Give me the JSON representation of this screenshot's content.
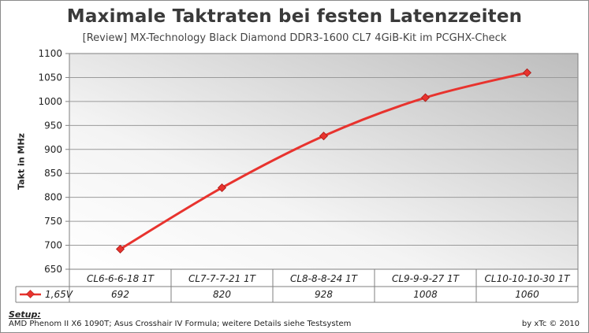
{
  "chart_data": {
    "type": "line",
    "title": "Maximale Taktraten bei festen Latenzzeiten",
    "subtitle": "[Review] MX-Technology Black Diamond DDR3-1600 CL7 4GiB-Kit im PCGHX-Check",
    "ylabel": "Takt in MHz",
    "xlabel": "",
    "ylim": [
      650,
      1100
    ],
    "yticks": [
      650,
      700,
      750,
      800,
      850,
      900,
      950,
      1000,
      1050,
      1100
    ],
    "grid": true,
    "legend_placement": "data-table-left",
    "categories": [
      "CL6-6-6-18 1T",
      "CL7-7-7-21 1T",
      "CL8-8-8-24 1T",
      "CL9-9-9-27 1T",
      "CL10-10-10-30 1T"
    ],
    "series": [
      {
        "name": "1,65V",
        "values": [
          692,
          820,
          928,
          1008,
          1060
        ],
        "color": "#e8332e"
      }
    ]
  },
  "footer": {
    "setup_title": "Setup:",
    "setup_text": "AMD Phenom II X6 1090T; Asus Crosshair IV Formula; weitere Details siehe Testsystem",
    "credit": "by xTc © 2010"
  }
}
